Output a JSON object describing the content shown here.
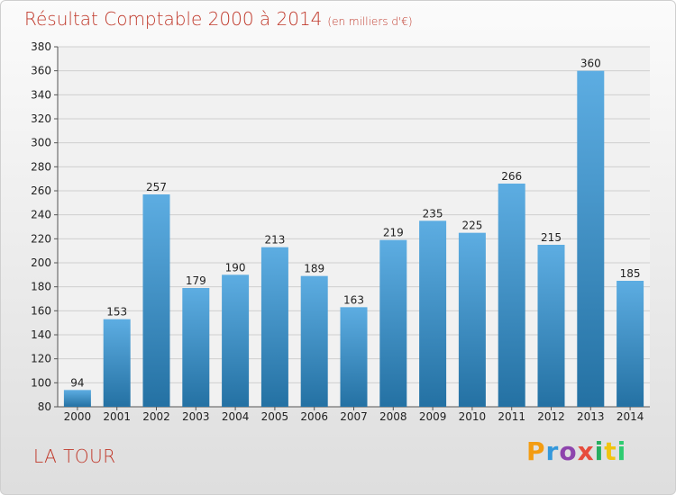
{
  "header": {
    "title": "Résultat Comptable 2000 à 2014",
    "subtitle": "(en milliers d'€)"
  },
  "footer": {
    "place": "LA TOUR",
    "brand": "Proxiti",
    "brand_colors": [
      "#f39c12",
      "#3498db",
      "#8e44ad",
      "#e74c3c",
      "#27ae60",
      "#f1c40f",
      "#2ecc71"
    ]
  },
  "colors": {
    "bar_top": "#5dade2",
    "bar_bottom": "#2471a3",
    "title": "#c0392b"
  },
  "chart_data": {
    "type": "bar",
    "categories": [
      "2000",
      "2001",
      "2002",
      "2003",
      "2004",
      "2005",
      "2006",
      "2007",
      "2008",
      "2009",
      "2010",
      "2011",
      "2012",
      "2013",
      "2014"
    ],
    "values": [
      94,
      153,
      257,
      179,
      190,
      213,
      189,
      163,
      219,
      235,
      225,
      266,
      215,
      360,
      185
    ],
    "ylim": [
      80,
      380
    ],
    "yticks": [
      80,
      100,
      120,
      140,
      160,
      180,
      200,
      220,
      240,
      260,
      280,
      300,
      320,
      340,
      360,
      380
    ],
    "grid": true
  }
}
